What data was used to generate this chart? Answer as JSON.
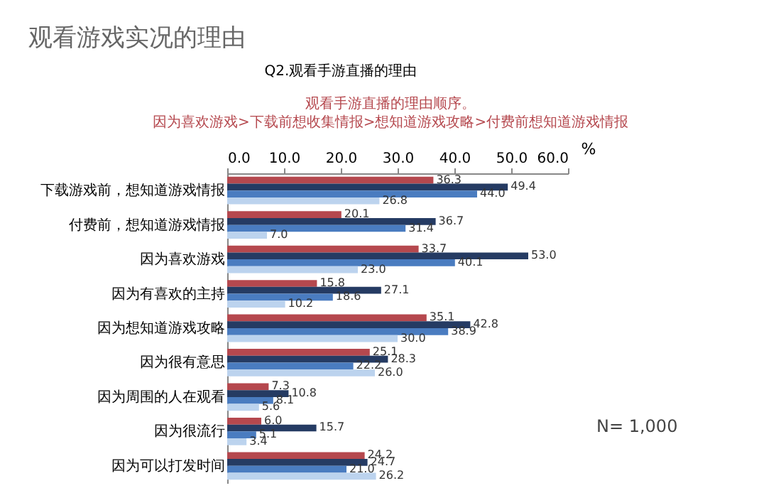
{
  "chart_data": {
    "type": "bar",
    "orientation": "horizontal",
    "title": "观看游戏实况的理由",
    "subtitle": "Q2.观看手游直播的理由",
    "xlabel": "%",
    "categories": [
      "下载游戏前，想知道游戏情报",
      "付费前，想知道游戏情报",
      "因为喜欢游戏",
      "因为有喜欢的主持",
      "因为想知道游戏攻略",
      "因为很有意思",
      "因为周围的人在观看",
      "因为很流行",
      "因为可以打发时间"
    ],
    "series": [
      {
        "color": "#b5484e",
        "values": [
          36.3,
          20.1,
          33.7,
          15.8,
          35.1,
          25.1,
          7.3,
          6.0,
          24.2
        ],
        "value_labels": [
          "36.3",
          "20.1",
          "33.7",
          "15.8",
          "35.1",
          "25.1",
          "7.3",
          "6.0",
          "24.2"
        ]
      },
      {
        "color": "#253b63",
        "values": [
          49.4,
          36.7,
          53.0,
          27.1,
          42.8,
          28.3,
          10.8,
          15.7,
          24.7
        ],
        "value_labels": [
          "49.4",
          "36.7",
          "53.0",
          "27.1",
          "42.8",
          "28.3",
          "10.8",
          "15.7",
          "24.7"
        ]
      },
      {
        "color": "#4a7cc0",
        "values": [
          44.0,
          31.4,
          40.1,
          18.6,
          38.9,
          22.2,
          8.1,
          5.1,
          21.0
        ],
        "value_labels": [
          "44.0",
          "31.4",
          "40.1",
          "18.6",
          "38.9",
          "22.2",
          "8.1",
          "5.1",
          "21.0"
        ]
      },
      {
        "color": "#bcd3ee",
        "values": [
          26.8,
          7.0,
          23.0,
          10.2,
          30.0,
          26.0,
          5.6,
          3.4,
          26.2
        ],
        "value_labels": [
          "26.8",
          "7.0",
          "23.0",
          "10.2",
          "30.0",
          "26.0",
          "5.6",
          "3.4",
          "26.2"
        ]
      }
    ],
    "xlim": [
      0,
      60
    ],
    "xticks": [
      {
        "value": 0,
        "label": "0.0"
      },
      {
        "value": 10,
        "label": "10.0"
      },
      {
        "value": 20,
        "label": "20.0"
      },
      {
        "value": 30,
        "label": "30.0"
      },
      {
        "value": 40,
        "label": "40.0"
      },
      {
        "value": 50,
        "label": "50.0"
      },
      {
        "value": 60,
        "label": "60.0"
      }
    ],
    "grid": false,
    "annotations": [
      "观看手游直播的理由顺序。",
      "因为喜欢游戏>下载前想收集情报>想知道游戏攻略>付费前想知道游戏情报",
      "N= 1,000"
    ]
  }
}
